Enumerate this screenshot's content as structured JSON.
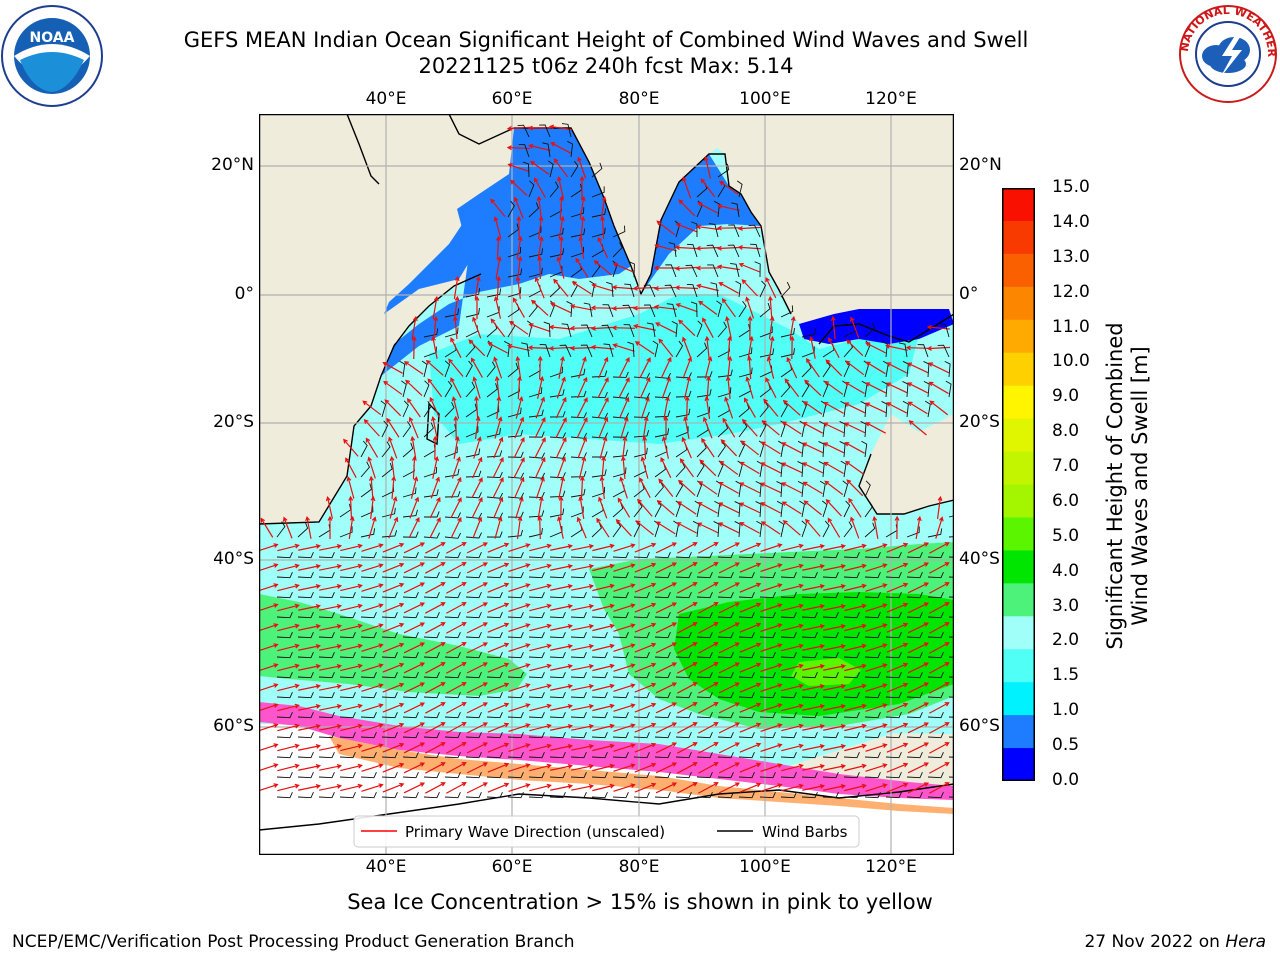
{
  "header": {
    "title_line1": "GEFS MEAN Indian Ocean Significant Height of Combined Wind Waves and Swell",
    "title_line2": "20221125 t06z 240h fcst   Max: 5.14"
  },
  "logos": {
    "left": "NOAA",
    "right_text": "NATIONAL WEATHER SERVICE"
  },
  "map": {
    "lon_ticks": [
      "40°E",
      "60°E",
      "80°E",
      "100°E",
      "120°E"
    ],
    "lat_ticks_left": [
      "20°N",
      "0°",
      "20°S",
      "40°S",
      "60°S"
    ],
    "lat_ticks_right": [
      "20°N",
      "0°",
      "20°S",
      "40°S",
      "60°S"
    ],
    "legend": {
      "wave_direction": "Primary Wave Direction (unscaled)",
      "wind_barbs": "Wind Barbs"
    }
  },
  "colorbar": {
    "label_line1": "Significant Height of Combined",
    "label_line2": "Wind Waves and Swell [m]",
    "ticks": [
      "15.0",
      "14.0",
      "13.0",
      "12.0",
      "11.0",
      "10.0",
      "9.0",
      "8.0",
      "7.0",
      "6.0",
      "5.0",
      "4.0",
      "3.0",
      "2.0",
      "1.5",
      "1.0",
      "0.5",
      "0.0"
    ],
    "colors": [
      "#f91000",
      "#f93a00",
      "#fa6000",
      "#fc8600",
      "#ffaa00",
      "#ffd000",
      "#fff500",
      "#e0f500",
      "#c4f500",
      "#a3f500",
      "#5cf500",
      "#00e600",
      "#4df27a",
      "#a0fff8",
      "#50fff5",
      "#00f2ff",
      "#1e7dff",
      "#0000ff"
    ]
  },
  "caption": "Sea Ice Concentration > 15% is shown in pink to yellow",
  "footer": {
    "left": "NCEP/EMC/Verification Post Processing Product Generation Branch",
    "right_prefix": "27 Nov 2022 on ",
    "right_host": "Hera"
  }
}
